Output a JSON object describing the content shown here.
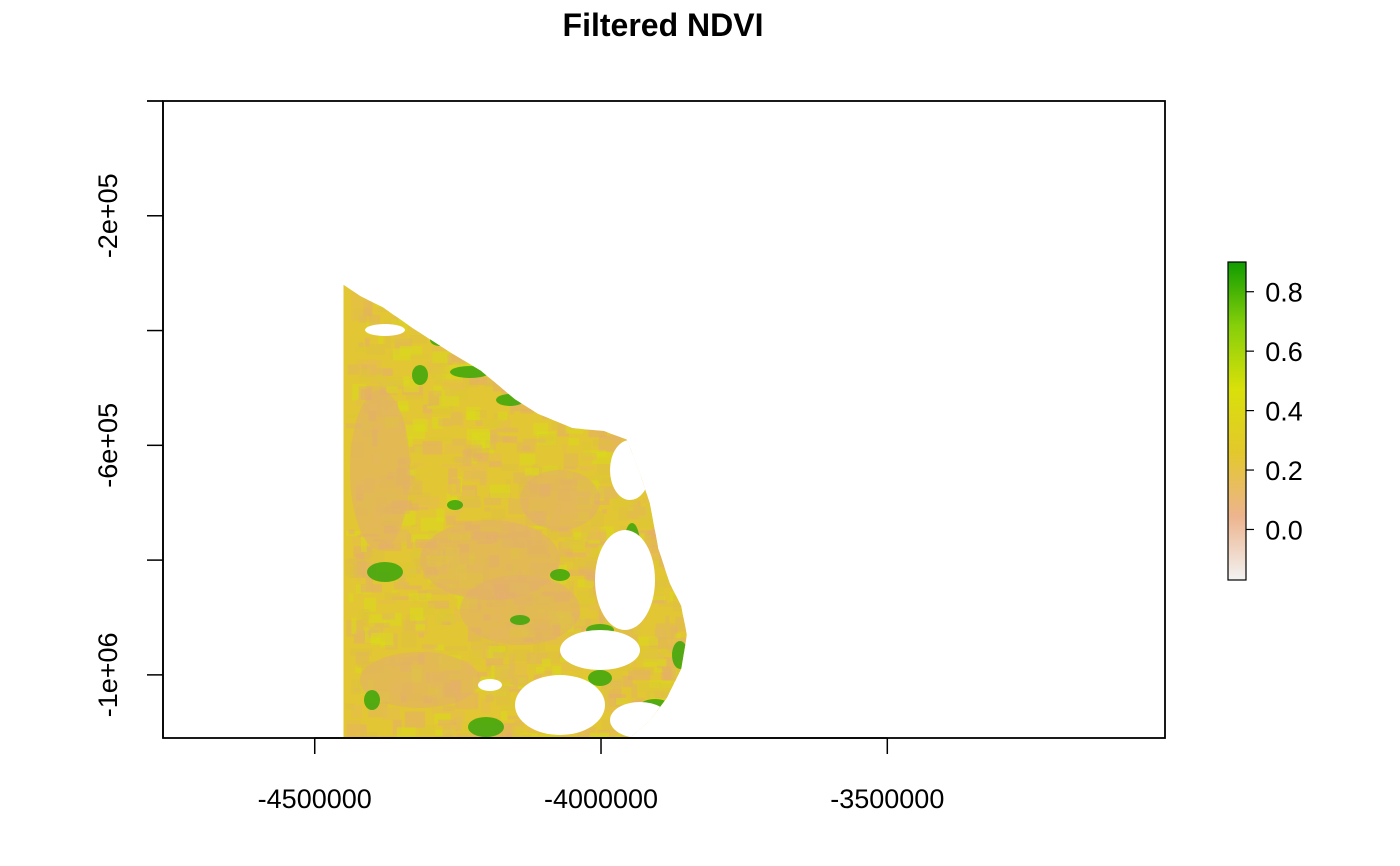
{
  "chart_data": {
    "type": "heatmap",
    "title": "Filtered NDVI",
    "xlabel": "",
    "ylabel": "",
    "xlim": [
      -4765000,
      -3015000
    ],
    "ylim": [
      -1110000,
      0
    ],
    "x_ticks": [
      -4500000,
      -4000000,
      -3500000
    ],
    "x_tick_labels": [
      "-4500000",
      "-4000000",
      "-3500000"
    ],
    "y_ticks": [
      -1200000,
      -1000000,
      -800000,
      -600000,
      -400000,
      -200000,
      0
    ],
    "y_tick_labels": [
      "",
      "-1e+06",
      "",
      "-6e+05",
      "",
      "-2e+05",
      ""
    ],
    "grid": false,
    "legend": {
      "placement": "right",
      "min": -0.17,
      "max": 0.9,
      "ticks": [
        0.0,
        0.2,
        0.4,
        0.6,
        0.8
      ],
      "tick_labels": [
        "0.0",
        "0.2",
        "0.4",
        "0.6",
        "0.8"
      ],
      "colors": [
        "#f2f2f2",
        "#edb48e",
        "#e3c82c",
        "#d9e00a",
        "#86cf0a",
        "#119c00"
      ]
    },
    "raster": {
      "description_values": "NDVI raster over northeastern region; mostly 0.2-0.4 with green patches near 0.6-0.9 along coast",
      "region_outline": [
        [
          -4450000,
          -320000
        ],
        [
          -4420000,
          -340000
        ],
        [
          -4380000,
          -360000
        ],
        [
          -4330000,
          -395000
        ],
        [
          -4260000,
          -440000
        ],
        [
          -4210000,
          -470000
        ],
        [
          -4150000,
          -520000
        ],
        [
          -4110000,
          -545000
        ],
        [
          -4050000,
          -570000
        ],
        [
          -3995000,
          -575000
        ],
        [
          -3955000,
          -590000
        ],
        [
          -3935000,
          -640000
        ],
        [
          -3915000,
          -700000
        ],
        [
          -3900000,
          -780000
        ],
        [
          -3880000,
          -840000
        ],
        [
          -3860000,
          -880000
        ],
        [
          -3850000,
          -930000
        ],
        [
          -3860000,
          -990000
        ],
        [
          -3885000,
          -1040000
        ],
        [
          -3915000,
          -1080000
        ],
        [
          -3950000,
          -1110000
        ],
        [
          -4450000,
          -1110000
        ]
      ],
      "ndvi_main": 0.3
    }
  }
}
